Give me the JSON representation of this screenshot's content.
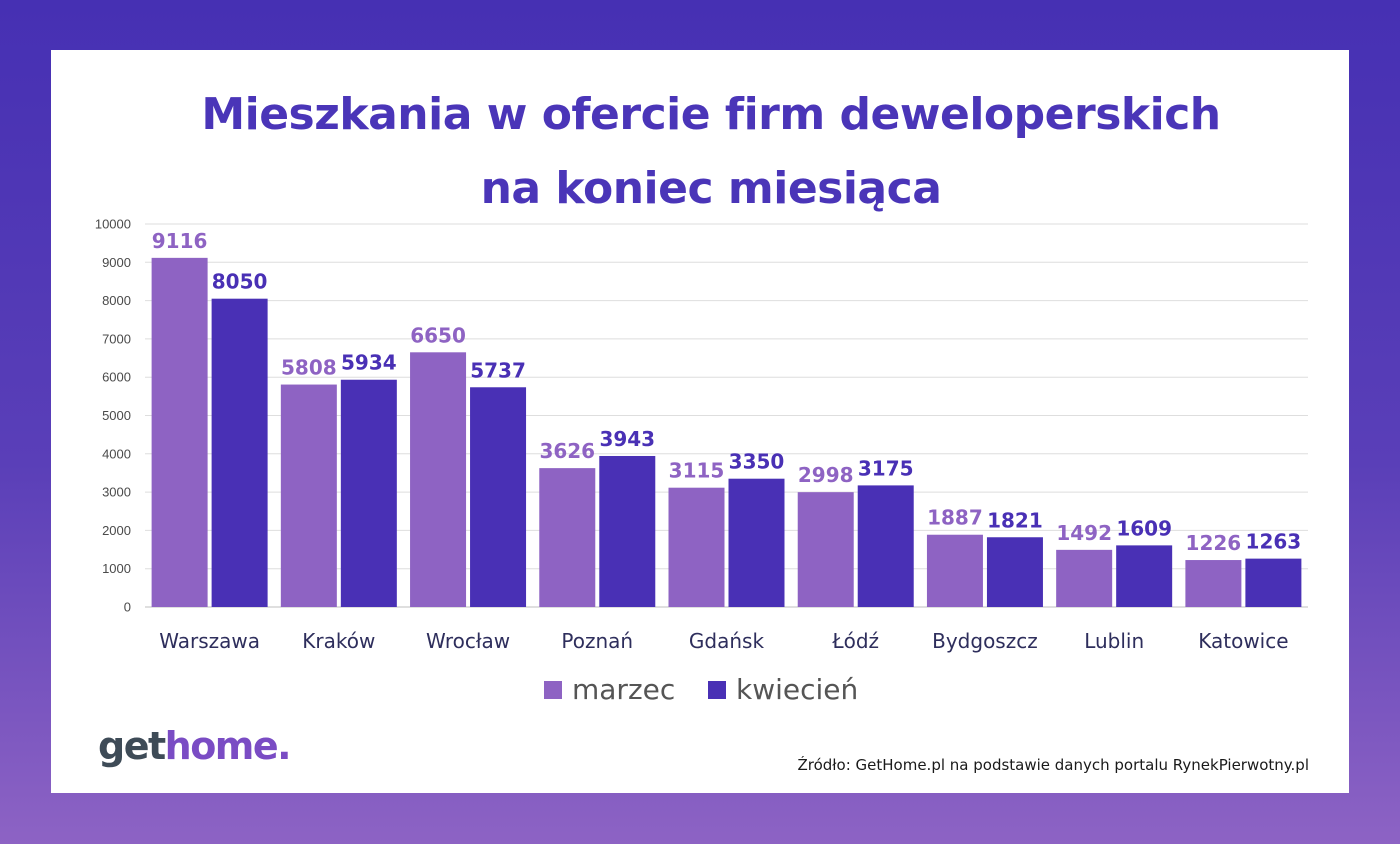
{
  "title_line1": "Mieszkania w ofercie firm deweloperskich",
  "title_line2": "na koniec miesiąca",
  "logo": {
    "part1": "get",
    "part2": "home."
  },
  "source": "Źródło: GetHome.pl na podstawie danych portalu RynekPierwotny.pl",
  "colors": {
    "marzec": "#8e63c3",
    "kwiecien": "#4930b5",
    "title": "#4a35b8"
  },
  "chart_data": {
    "type": "bar",
    "title": "Mieszkania w ofercie firm deweloperskich na koniec miesiąca",
    "categories": [
      "Warszawa",
      "Kraków",
      "Wrocław",
      "Poznań",
      "Gdańsk",
      "Łódź",
      "Bydgoszcz",
      "Lublin",
      "Katowice"
    ],
    "series": [
      {
        "name": "marzec",
        "values": [
          9116,
          5808,
          6650,
          3626,
          3115,
          2998,
          1887,
          1492,
          1226
        ]
      },
      {
        "name": "kwiecień",
        "values": [
          8050,
          5934,
          5737,
          3943,
          3350,
          3175,
          1821,
          1609,
          1263
        ]
      }
    ],
    "ylim": [
      0,
      10000
    ],
    "yticks": [
      0,
      1000,
      2000,
      3000,
      4000,
      5000,
      6000,
      7000,
      8000,
      9000,
      10000
    ],
    "grid": true,
    "legend": "bottom",
    "data_labels": true
  }
}
